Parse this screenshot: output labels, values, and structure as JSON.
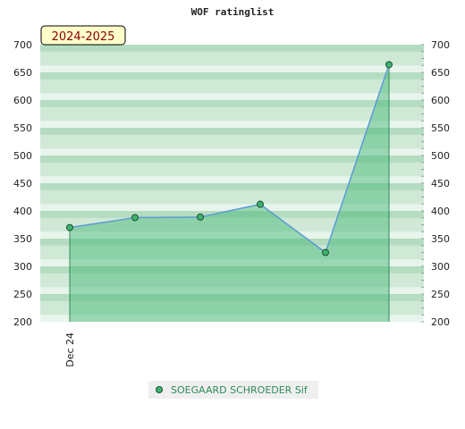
{
  "chart_data": {
    "type": "area",
    "title": "WOF ratinglist",
    "badge": "2024-2025",
    "x_tick_labels": [
      "Dec 24"
    ],
    "ylim": [
      200,
      700
    ],
    "y_ticks": [
      200,
      250,
      300,
      350,
      400,
      450,
      500,
      550,
      600,
      650,
      700
    ],
    "grid": true,
    "legend_position": "bottom-center",
    "series": [
      {
        "name": "SOEGAARD SCHROEDER Sif",
        "values": [
          370,
          388,
          389,
          412,
          325,
          664
        ]
      }
    ],
    "colors": {
      "line": "#5b9bd5",
      "marker": "#3cb371",
      "fill": "#3cb371",
      "band_dark": "#b4dcc0",
      "band_mid": "#cfe9d6",
      "band_light": "#e8f5ec",
      "legend_text": "#2e8b57",
      "badge_bg": "#ffffcc",
      "badge_text": "#8b0000"
    }
  }
}
